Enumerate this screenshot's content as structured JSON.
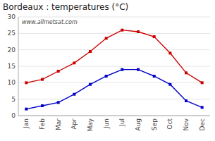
{
  "chart_data": {
    "type": "line",
    "title": "Bordeaux : temperatures (°C)",
    "categories": [
      "Jan",
      "Feb",
      "Mar",
      "Apr",
      "May",
      "Jun",
      "Jul",
      "Aug",
      "Sep",
      "Oct",
      "Nov",
      "Dec"
    ],
    "series": [
      {
        "color": "#cc0000",
        "marker": "square",
        "line_style": "solid",
        "values": [
          10,
          11,
          13.5,
          16,
          19.5,
          23.5,
          26,
          25.5,
          24,
          19,
          13,
          10
        ]
      },
      {
        "color": "#0000cc",
        "marker": "square",
        "line_style": "solid",
        "values": [
          2,
          3,
          4,
          6.5,
          9.5,
          12,
          14,
          14,
          12,
          9.5,
          4.5,
          2.5
        ]
      }
    ],
    "ylim": [
      0,
      30
    ],
    "yticks": [
      0,
      5,
      10,
      15,
      20,
      25,
      30
    ],
    "grid": true,
    "annotation": "www.allmetsat.com"
  }
}
